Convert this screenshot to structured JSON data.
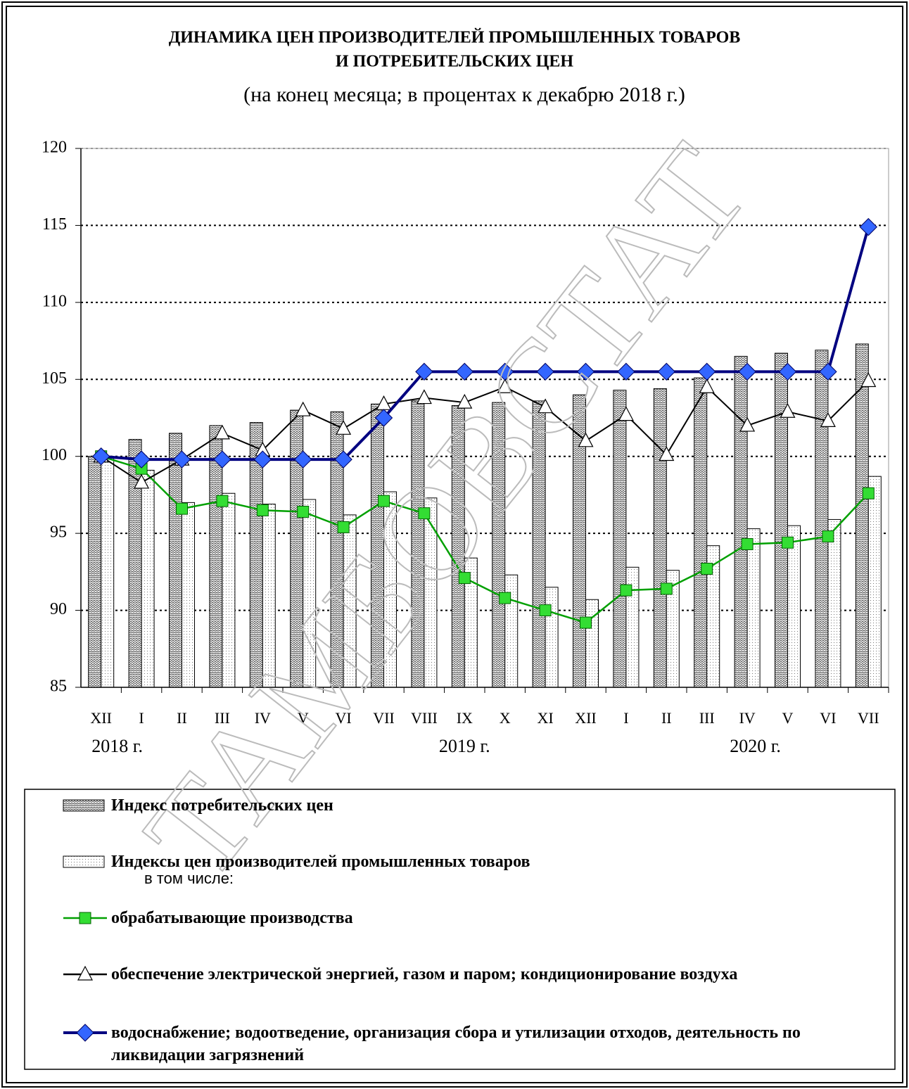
{
  "chart_data": {
    "type": "bar_line",
    "title": "ДИНАМИКА ЦЕН ПРОИЗВОДИТЕЛЕЙ ПРОМЫШЛЕННЫХ ТОВАРОВ",
    "title_line2": "И ПОТРЕБИТЕЛЬСКИХ ЦЕН",
    "subtitle": "(на конец месяца; в процентах к декабрю 2018 г.)",
    "categories": [
      "XII",
      "I",
      "II",
      "III",
      "IV",
      "V",
      "VI",
      "VII",
      "VIII",
      "IX",
      "X",
      "XI",
      "XII",
      "I",
      "II",
      "III",
      "IV",
      "V",
      "VI",
      "VII"
    ],
    "year_labels": [
      "2018 г.",
      "2019 г.",
      "2020 г."
    ],
    "ylim": [
      85,
      120
    ],
    "yticks": [
      85,
      90,
      95,
      100,
      105,
      110,
      115,
      120
    ],
    "grid": true,
    "bar_series": [
      {
        "name": "Индекс потребительских цен",
        "color": "#808080",
        "values": [
          100,
          101.1,
          101.5,
          102.0,
          102.2,
          103.0,
          102.9,
          103.4,
          103.6,
          103.3,
          103.5,
          103.6,
          104.0,
          104.3,
          104.4,
          105.1,
          106.5,
          106.7,
          106.9,
          107.3
        ]
      },
      {
        "name": "Индексы цен производителей промышленных товаров",
        "color": "#b0b0b0",
        "values": [
          100,
          99.1,
          97.0,
          97.6,
          96.9,
          97.2,
          96.2,
          97.7,
          97.3,
          93.4,
          92.3,
          91.5,
          90.7,
          92.8,
          92.6,
          94.2,
          95.3,
          95.5,
          95.9,
          98.7
        ]
      }
    ],
    "legend_note": "в том числе:",
    "series": [
      {
        "name": "обрабатывающие производства",
        "color": "#00a000",
        "marker": "square",
        "marker_color": "#33dd33",
        "values": [
          100,
          99.2,
          96.6,
          97.1,
          96.5,
          96.4,
          95.4,
          97.1,
          96.3,
          92.1,
          90.8,
          90.0,
          89.2,
          91.3,
          91.4,
          92.7,
          94.3,
          94.4,
          94.8,
          97.6
        ]
      },
      {
        "name": "обеспечение электрической энергией, газом и паром; кондиционирование воздуха",
        "color": "#000000",
        "marker": "triangle",
        "marker_color": "#ffffff",
        "values": [
          100,
          98.3,
          99.8,
          101.5,
          100.4,
          103.0,
          101.8,
          103.4,
          103.8,
          103.5,
          104.5,
          103.2,
          101.0,
          102.7,
          100.1,
          104.5,
          102.0,
          102.9,
          102.3,
          104.9
        ]
      },
      {
        "name": "водоснабжение; водоотведение, организация сбора и утилизации отходов, деятельность по ликвидации загрязнений",
        "color": "#000080",
        "marker": "diamond",
        "marker_color": "#3366ff",
        "values": [
          100,
          99.8,
          99.8,
          99.8,
          99.8,
          99.8,
          99.8,
          102.5,
          105.5,
          105.5,
          105.5,
          105.5,
          105.5,
          105.5,
          105.5,
          105.5,
          105.5,
          105.5,
          105.5,
          114.9
        ]
      }
    ],
    "watermark": "ТАМБОВСТАТ"
  }
}
